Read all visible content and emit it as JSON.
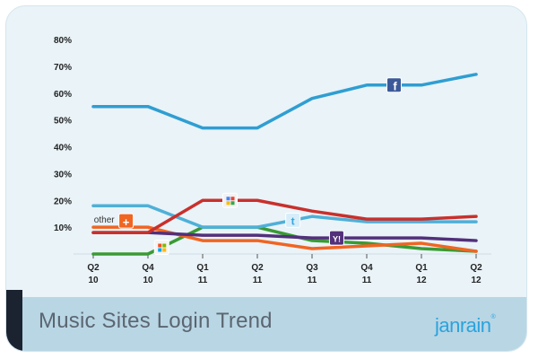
{
  "title": "Music Sites Login Trend",
  "brand": "janrain",
  "brand_mark": "®",
  "chart_data": {
    "type": "line",
    "title": "Music Sites Login Trend",
    "xlabel": "",
    "ylabel": "",
    "ylim": [
      0,
      80
    ],
    "y_ticks": [
      "80%",
      "70%",
      "60%",
      "50%",
      "40%",
      "30%",
      "20%",
      "10%"
    ],
    "y_tick_values": [
      80,
      70,
      60,
      50,
      40,
      30,
      20,
      10
    ],
    "categories": [
      {
        "line1": "Q2",
        "line2": "10"
      },
      {
        "line1": "Q4",
        "line2": "10"
      },
      {
        "line1": "Q1",
        "line2": "11"
      },
      {
        "line1": "Q2",
        "line2": "11"
      },
      {
        "line1": "Q3",
        "line2": "11"
      },
      {
        "line1": "Q4",
        "line2": "11"
      },
      {
        "line1": "Q1",
        "line2": "12"
      },
      {
        "line1": "Q2",
        "line2": "12"
      }
    ],
    "series": [
      {
        "name": "Facebook",
        "icon": "facebook-icon",
        "color": "#2f9ed2",
        "values": [
          55,
          55,
          47,
          47,
          58,
          63,
          63,
          67
        ]
      },
      {
        "name": "Twitter",
        "icon": "twitter-icon",
        "color": "#4fb0d8",
        "values": [
          18,
          18,
          10,
          10,
          14,
          12,
          12,
          12
        ]
      },
      {
        "name": "Google",
        "icon": "google-icon",
        "color": "#c9302c",
        "values": [
          8,
          8,
          20,
          20,
          16,
          13,
          13,
          14
        ]
      },
      {
        "name": "Other",
        "icon": "plus-icon",
        "color": "#f06522",
        "values": [
          10,
          10,
          5,
          5,
          2,
          3,
          4,
          1
        ]
      },
      {
        "name": "Windows Live",
        "icon": "windows-icon",
        "color": "#3a9a35",
        "values": [
          0,
          0,
          10,
          10,
          5,
          4,
          2,
          1
        ]
      },
      {
        "name": "Yahoo",
        "icon": "yahoo-icon",
        "color": "#52307a",
        "values": [
          8,
          8,
          7,
          7,
          6,
          6,
          6,
          5
        ]
      }
    ],
    "annotations": [
      {
        "text": "other",
        "series": "Other"
      }
    ]
  }
}
